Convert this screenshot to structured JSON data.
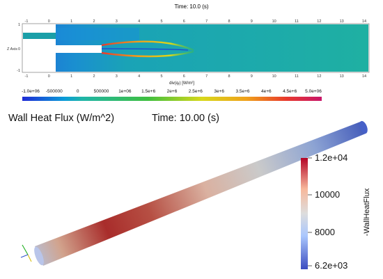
{
  "top_plot": {
    "title": "Time: 10.0 (s)",
    "x_ticks": [
      "-1",
      "0",
      "1",
      "2",
      "3",
      "4",
      "5",
      "6",
      "7",
      "8",
      "9",
      "10",
      "11",
      "12",
      "13",
      "14"
    ],
    "y_ticks": [
      "1",
      "0",
      "-1"
    ],
    "y_axis_label": "Z Axis",
    "colorbar": {
      "ticks": [
        "-1.0e+06",
        "-500000",
        "0",
        "500000",
        "1e+06",
        "1.5e+6",
        "2e+6",
        "2.5e+6",
        "3e+6",
        "3.5e+6",
        "4e+6",
        "4.5e+6",
        "5.0e+06"
      ],
      "label": "div(qᵣ) [W/m²]",
      "range": [
        -1000000,
        5000000
      ],
      "colormap": [
        "#1f2bd6",
        "#0a9bd8",
        "#1fb5a8",
        "#3fbf3f",
        "#d8d81b",
        "#f0a01b",
        "#e83a2c",
        "#c8166a"
      ]
    }
  },
  "bottom_plot": {
    "header_left": "Wall Heat Flux (W/m^2)",
    "header_right": "Time:  10.00 (s)",
    "legend": {
      "title": "-WallHeatFlux",
      "ticks": [
        "1.2e+04",
        "10000",
        "8000",
        "6.2e+03"
      ],
      "range": [
        6200,
        12000
      ],
      "colormap": [
        "#3b4cc0",
        "#aac7fd",
        "#dddddd",
        "#f7b89c",
        "#b40426"
      ]
    }
  }
}
